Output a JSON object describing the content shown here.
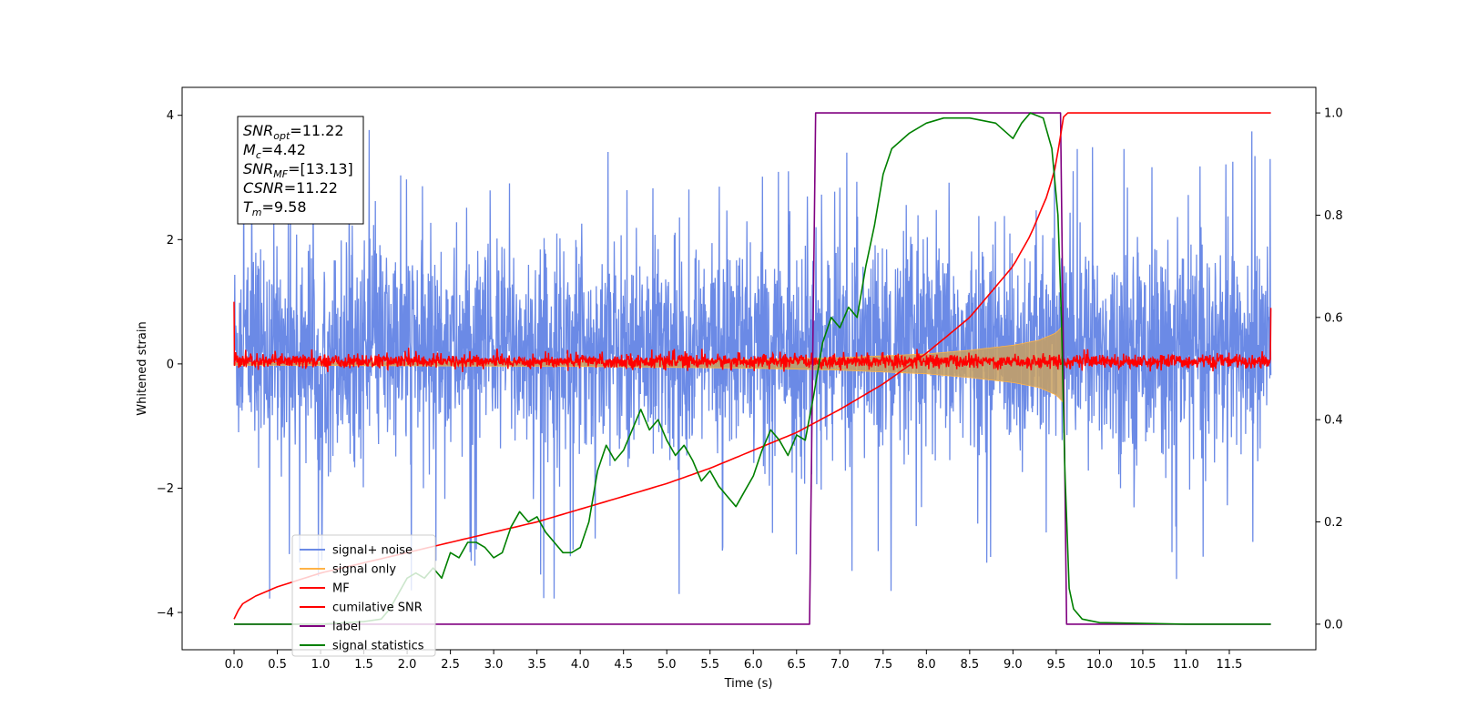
{
  "chart_data": {
    "type": "line",
    "title": "",
    "xlabel": "Time (s)",
    "ylabel": "Whitened strain",
    "xlim": [
      -0.6,
      12.5
    ],
    "ylim": [
      -4.6,
      4.45
    ],
    "ylim_right": [
      -0.05,
      1.05
    ],
    "x_ticks": [
      "0.0",
      "0.5",
      "1.0",
      "1.5",
      "2.0",
      "2.5",
      "3.0",
      "3.5",
      "4.0",
      "4.5",
      "5.0",
      "5.5",
      "6.0",
      "6.5",
      "7.0",
      "7.5",
      "8.0",
      "8.5",
      "9.0",
      "9.5",
      "10.0",
      "10.5",
      "11.0",
      "11.5"
    ],
    "y_ticks": [
      "4",
      "2",
      "0",
      "−2",
      "−4"
    ],
    "y_ticks_right": [
      "1.0",
      "0.8",
      "0.6",
      "0.4",
      "0.2",
      "0.0"
    ],
    "grid": false,
    "legend_position": "lower-left",
    "annotation_box": {
      "position": "top-left",
      "lines": [
        {
          "main": "SNR",
          "sub": "opt",
          "rest": "=11.22"
        },
        {
          "main": "M",
          "sub": "c",
          "rest": "=4.42"
        },
        {
          "main": "SNR",
          "sub": "MF",
          "rest": "=[13.13]"
        },
        {
          "main": "CSNR",
          "sub": "",
          "rest": "=11.22"
        },
        {
          "main": "T",
          "sub": "m",
          "rest": "=9.58"
        }
      ]
    },
    "series": [
      {
        "name": "signal+ noise",
        "axis": "left",
        "color": "#6b8ae6",
        "style": "noise",
        "x_range": [
          0,
          11.98
        ],
        "typical_range": [
          -1.9,
          2.3
        ],
        "extreme_range": [
          -4.15,
          4.0
        ]
      },
      {
        "name": "signal only",
        "axis": "left",
        "color": "#ffb347",
        "style": "chirp-envelope",
        "x_range": [
          0,
          9.58
        ],
        "envelope": [
          [
            0.0,
            0.02
          ],
          [
            4.0,
            0.04
          ],
          [
            6.0,
            0.07
          ],
          [
            7.0,
            0.1
          ],
          [
            8.0,
            0.16
          ],
          [
            8.5,
            0.22
          ],
          [
            9.0,
            0.3
          ],
          [
            9.3,
            0.38
          ],
          [
            9.5,
            0.5
          ],
          [
            9.58,
            0.62
          ]
        ]
      },
      {
        "name": "MF",
        "axis": "left",
        "color": "#ff0000",
        "style": "noise-small",
        "x_range": [
          0,
          11.98
        ],
        "typical_range": [
          -0.1,
          0.25
        ],
        "edge_spikes": [
          [
            0.0,
            1.0
          ],
          [
            11.98,
            0.9
          ]
        ]
      },
      {
        "name": "cumilative SNR",
        "axis": "right",
        "color": "#ff0000",
        "style": "line",
        "points": [
          [
            0.0,
            0.01
          ],
          [
            0.02,
            0.02
          ],
          [
            0.1,
            0.04
          ],
          [
            0.25,
            0.055
          ],
          [
            0.5,
            0.073
          ],
          [
            1.0,
            0.1
          ],
          [
            1.5,
            0.12
          ],
          [
            2.0,
            0.14
          ],
          [
            2.5,
            0.16
          ],
          [
            3.0,
            0.18
          ],
          [
            3.5,
            0.2
          ],
          [
            4.0,
            0.225
          ],
          [
            4.5,
            0.25
          ],
          [
            5.0,
            0.275
          ],
          [
            5.5,
            0.305
          ],
          [
            6.0,
            0.34
          ],
          [
            6.5,
            0.375
          ],
          [
            7.0,
            0.42
          ],
          [
            7.5,
            0.47
          ],
          [
            8.0,
            0.53
          ],
          [
            8.5,
            0.6
          ],
          [
            9.0,
            0.7
          ],
          [
            9.2,
            0.76
          ],
          [
            9.4,
            0.84
          ],
          [
            9.5,
            0.9
          ],
          [
            9.58,
            0.99
          ],
          [
            9.6,
            1.0
          ],
          [
            11.98,
            1.0
          ]
        ]
      },
      {
        "name": "label",
        "axis": "right",
        "color": "#800080",
        "style": "line",
        "points": [
          [
            0.0,
            0.0
          ],
          [
            6.65,
            0.0
          ],
          [
            6.72,
            1.0
          ],
          [
            9.55,
            1.0
          ],
          [
            9.62,
            0.0
          ],
          [
            11.98,
            0.0
          ]
        ]
      },
      {
        "name": "signal statistics",
        "axis": "right",
        "color": "#008000",
        "style": "line",
        "points": [
          [
            0.0,
            0.0
          ],
          [
            0.5,
            0.0
          ],
          [
            1.0,
            0.0
          ],
          [
            1.5,
            0.005
          ],
          [
            1.7,
            0.01
          ],
          [
            1.8,
            0.03
          ],
          [
            1.9,
            0.06
          ],
          [
            2.0,
            0.09
          ],
          [
            2.1,
            0.1
          ],
          [
            2.2,
            0.09
          ],
          [
            2.3,
            0.11
          ],
          [
            2.4,
            0.09
          ],
          [
            2.5,
            0.14
          ],
          [
            2.6,
            0.13
          ],
          [
            2.7,
            0.16
          ],
          [
            2.8,
            0.16
          ],
          [
            2.9,
            0.15
          ],
          [
            3.0,
            0.13
          ],
          [
            3.1,
            0.14
          ],
          [
            3.2,
            0.19
          ],
          [
            3.3,
            0.22
          ],
          [
            3.4,
            0.2
          ],
          [
            3.5,
            0.21
          ],
          [
            3.6,
            0.18
          ],
          [
            3.7,
            0.16
          ],
          [
            3.8,
            0.14
          ],
          [
            3.9,
            0.14
          ],
          [
            4.0,
            0.15
          ],
          [
            4.1,
            0.2
          ],
          [
            4.2,
            0.3
          ],
          [
            4.3,
            0.35
          ],
          [
            4.4,
            0.32
          ],
          [
            4.5,
            0.34
          ],
          [
            4.6,
            0.38
          ],
          [
            4.7,
            0.42
          ],
          [
            4.8,
            0.38
          ],
          [
            4.9,
            0.4
          ],
          [
            5.0,
            0.36
          ],
          [
            5.1,
            0.33
          ],
          [
            5.2,
            0.35
          ],
          [
            5.3,
            0.32
          ],
          [
            5.4,
            0.28
          ],
          [
            5.5,
            0.3
          ],
          [
            5.6,
            0.27
          ],
          [
            5.7,
            0.25
          ],
          [
            5.8,
            0.23
          ],
          [
            5.9,
            0.26
          ],
          [
            6.0,
            0.29
          ],
          [
            6.1,
            0.34
          ],
          [
            6.2,
            0.38
          ],
          [
            6.3,
            0.36
          ],
          [
            6.4,
            0.33
          ],
          [
            6.5,
            0.37
          ],
          [
            6.6,
            0.36
          ],
          [
            6.7,
            0.45
          ],
          [
            6.8,
            0.55
          ],
          [
            6.9,
            0.6
          ],
          [
            7.0,
            0.58
          ],
          [
            7.1,
            0.62
          ],
          [
            7.2,
            0.6
          ],
          [
            7.3,
            0.7
          ],
          [
            7.4,
            0.78
          ],
          [
            7.5,
            0.88
          ],
          [
            7.6,
            0.93
          ],
          [
            7.8,
            0.96
          ],
          [
            8.0,
            0.98
          ],
          [
            8.2,
            0.99
          ],
          [
            8.5,
            0.99
          ],
          [
            8.8,
            0.98
          ],
          [
            9.0,
            0.95
          ],
          [
            9.1,
            0.98
          ],
          [
            9.2,
            1.0
          ],
          [
            9.35,
            0.99
          ],
          [
            9.45,
            0.93
          ],
          [
            9.52,
            0.8
          ],
          [
            9.56,
            0.6
          ],
          [
            9.6,
            0.3
          ],
          [
            9.65,
            0.07
          ],
          [
            9.7,
            0.03
          ],
          [
            9.8,
            0.01
          ],
          [
            10.0,
            0.003
          ],
          [
            11.0,
            0.0
          ],
          [
            11.98,
            0.0
          ]
        ]
      }
    ]
  }
}
